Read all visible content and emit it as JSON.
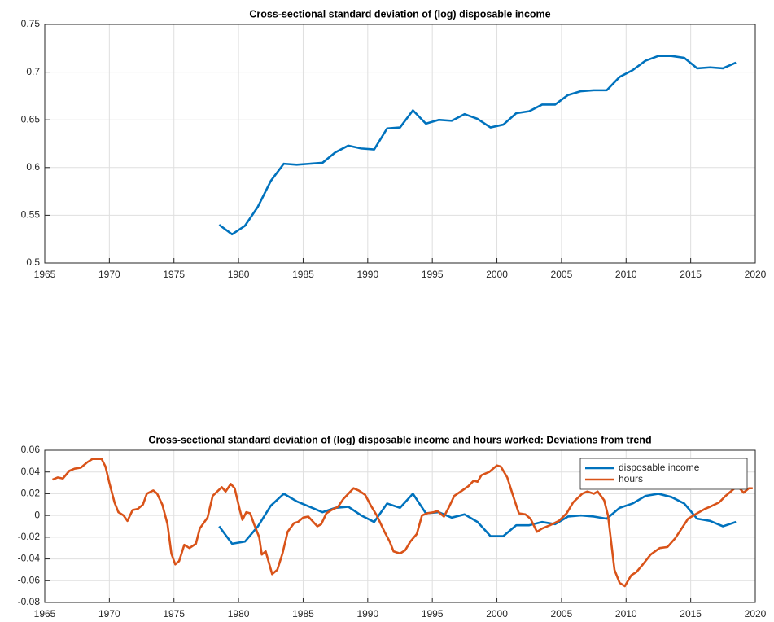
{
  "chart_data": [
    {
      "type": "line",
      "title": "Cross-sectional standard deviation of (log) disposable income",
      "xlim": [
        1965,
        2020
      ],
      "xticks": [
        1965,
        1970,
        1975,
        1980,
        1985,
        1990,
        1995,
        2000,
        2005,
        2010,
        2015,
        2020
      ],
      "ylim": [
        0.5,
        0.75
      ],
      "yticks": [
        0.5,
        0.55,
        0.6,
        0.65,
        0.7,
        0.75
      ],
      "grid": true,
      "series": [
        {
          "color": "#0072BD",
          "x": [
            1978.5,
            1979.5,
            1980.5,
            1981.5,
            1982.5,
            1983.5,
            1984.5,
            1985.5,
            1986.5,
            1987.5,
            1988.5,
            1989.5,
            1990.5,
            1991.5,
            1992.5,
            1993.5,
            1994.5,
            1995.5,
            1996.5,
            1997.5,
            1998.5,
            1999.5,
            2000.5,
            2001.5,
            2002.5,
            2003.5,
            2004.5,
            2005.5,
            2006.5,
            2007.5,
            2008.5,
            2009.5,
            2010.5,
            2011.5,
            2012.5,
            2013.5,
            2014.5,
            2015.5,
            2016.5,
            2017.5,
            2018.5
          ],
          "values": [
            0.54,
            0.53,
            0.539,
            0.559,
            0.586,
            0.604,
            0.603,
            0.604,
            0.605,
            0.616,
            0.623,
            0.62,
            0.619,
            0.641,
            0.642,
            0.66,
            0.646,
            0.65,
            0.649,
            0.656,
            0.651,
            0.642,
            0.645,
            0.657,
            0.659,
            0.666,
            0.666,
            0.676,
            0.68,
            0.681,
            0.681,
            0.695,
            0.702,
            0.712,
            0.717,
            0.717,
            0.715,
            0.704,
            0.705,
            0.704,
            0.71
          ]
        }
      ]
    },
    {
      "type": "line",
      "title": "Cross-sectional standard deviation of (log) disposable income and hours worked: Deviations from trend",
      "xlim": [
        1965,
        2020
      ],
      "xticks": [
        1965,
        1970,
        1975,
        1980,
        1985,
        1990,
        1995,
        2000,
        2005,
        2010,
        2015,
        2020
      ],
      "ylim": [
        -0.08,
        0.06
      ],
      "yticks": [
        -0.08,
        -0.06,
        -0.04,
        -0.02,
        0,
        0.02,
        0.04,
        0.06
      ],
      "grid": true,
      "legend": "northeast",
      "series": [
        {
          "name": "disposable income",
          "color": "#0072BD",
          "x": [
            1978.5,
            1979.5,
            1980.5,
            1981.5,
            1982.5,
            1983.5,
            1984.5,
            1985.5,
            1986.5,
            1987.5,
            1988.5,
            1989.5,
            1990.5,
            1991.5,
            1992.5,
            1993.5,
            1994.5,
            1995.5,
            1996.5,
            1997.5,
            1998.5,
            1999.5,
            2000.5,
            2001.5,
            2002.5,
            2003.5,
            2004.5,
            2005.5,
            2006.5,
            2007.5,
            2008.5,
            2009.5,
            2010.5,
            2011.5,
            2012.5,
            2013.5,
            2014.5,
            2015.5,
            2016.5,
            2017.5,
            2018.5
          ],
          "values": [
            -0.01,
            -0.026,
            -0.024,
            -0.01,
            0.009,
            0.02,
            0.013,
            0.008,
            0.003,
            0.007,
            0.008,
            0.0,
            -0.006,
            0.011,
            0.007,
            0.02,
            0.002,
            0.003,
            -0.002,
            0.001,
            -0.006,
            -0.019,
            -0.019,
            -0.009,
            -0.009,
            -0.006,
            -0.008,
            -0.001,
            0.0,
            -0.001,
            -0.003,
            0.007,
            0.011,
            0.018,
            0.02,
            0.017,
            0.011,
            -0.003,
            -0.005,
            -0.01,
            -0.006
          ]
        },
        {
          "name": "hours",
          "color": "#D95319",
          "x": [
            1965.6,
            1966.0,
            1966.4,
            1966.9,
            1967.3,
            1967.8,
            1968.3,
            1968.7,
            1969.4,
            1969.7,
            1970.0,
            1970.4,
            1970.7,
            1971.1,
            1971.4,
            1971.8,
            1972.2,
            1972.6,
            1972.9,
            1973.4,
            1973.7,
            1974.1,
            1974.5,
            1974.8,
            1975.1,
            1975.4,
            1975.8,
            1976.2,
            1976.7,
            1977.0,
            1977.6,
            1978.0,
            1978.7,
            1979.0,
            1979.4,
            1979.7,
            1980.1,
            1980.3,
            1980.6,
            1980.9,
            1981.2,
            1981.6,
            1981.8,
            1982.1,
            1982.6,
            1983.0,
            1983.4,
            1983.8,
            1984.3,
            1984.6,
            1985.0,
            1985.4,
            1986.1,
            1986.4,
            1986.8,
            1987.2,
            1987.7,
            1988.1,
            1988.9,
            1989.3,
            1989.8,
            1990.2,
            1990.7,
            1991.3,
            1991.7,
            1992.0,
            1992.5,
            1992.9,
            1993.3,
            1993.8,
            1994.2,
            1994.6,
            1995.1,
            1995.4,
            1995.9,
            1996.3,
            1996.7,
            1997.2,
            1997.8,
            1998.2,
            1998.5,
            1998.8,
            1999.4,
            2000.0,
            2000.3,
            2000.8,
            2001.2,
            2001.7,
            2002.2,
            2002.6,
            2003.1,
            2003.5,
            2004.1,
            2004.8,
            2005.4,
            2005.9,
            2006.6,
            2007.0,
            2007.5,
            2007.8,
            2008.3,
            2008.6,
            2008.9,
            2009.1,
            2009.5,
            2009.9,
            2010.4,
            2010.8,
            2011.3,
            2011.9,
            2012.6,
            2013.2,
            2013.8,
            2014.3,
            2014.8,
            2015.5,
            2016.1,
            2016.5,
            2017.2,
            2017.7,
            2018.4,
            2018.7,
            2019.1,
            2019.5,
            2019.8
          ],
          "values": [
            0.033,
            0.035,
            0.034,
            0.041,
            0.043,
            0.044,
            0.049,
            0.052,
            0.052,
            0.045,
            0.03,
            0.012,
            0.003,
            0.0,
            -0.005,
            0.005,
            0.006,
            0.01,
            0.02,
            0.023,
            0.02,
            0.01,
            -0.008,
            -0.035,
            -0.045,
            -0.042,
            -0.027,
            -0.03,
            -0.026,
            -0.012,
            -0.002,
            0.018,
            0.026,
            0.022,
            0.029,
            0.025,
            0.005,
            -0.004,
            0.003,
            0.002,
            -0.008,
            -0.02,
            -0.036,
            -0.033,
            -0.054,
            -0.05,
            -0.035,
            -0.015,
            -0.007,
            -0.006,
            -0.002,
            -0.001,
            -0.01,
            -0.008,
            0.002,
            0.005,
            0.008,
            0.015,
            0.025,
            0.023,
            0.019,
            0.01,
            0.0,
            -0.015,
            -0.024,
            -0.033,
            -0.035,
            -0.032,
            -0.024,
            -0.017,
            0.0,
            0.002,
            0.003,
            0.004,
            -0.001,
            0.008,
            0.018,
            0.022,
            0.027,
            0.032,
            0.031,
            0.037,
            0.04,
            0.046,
            0.045,
            0.035,
            0.02,
            0.002,
            0.001,
            -0.003,
            -0.015,
            -0.012,
            -0.009,
            -0.005,
            0.002,
            0.012,
            0.02,
            0.022,
            0.02,
            0.022,
            0.014,
            0.0,
            -0.03,
            -0.05,
            -0.062,
            -0.065,
            -0.055,
            -0.052,
            -0.045,
            -0.036,
            -0.03,
            -0.029,
            -0.021,
            -0.012,
            -0.003,
            0.002,
            0.006,
            0.008,
            0.012,
            0.018,
            0.025,
            0.026,
            0.021,
            0.025,
            0.025
          ]
        }
      ]
    }
  ]
}
